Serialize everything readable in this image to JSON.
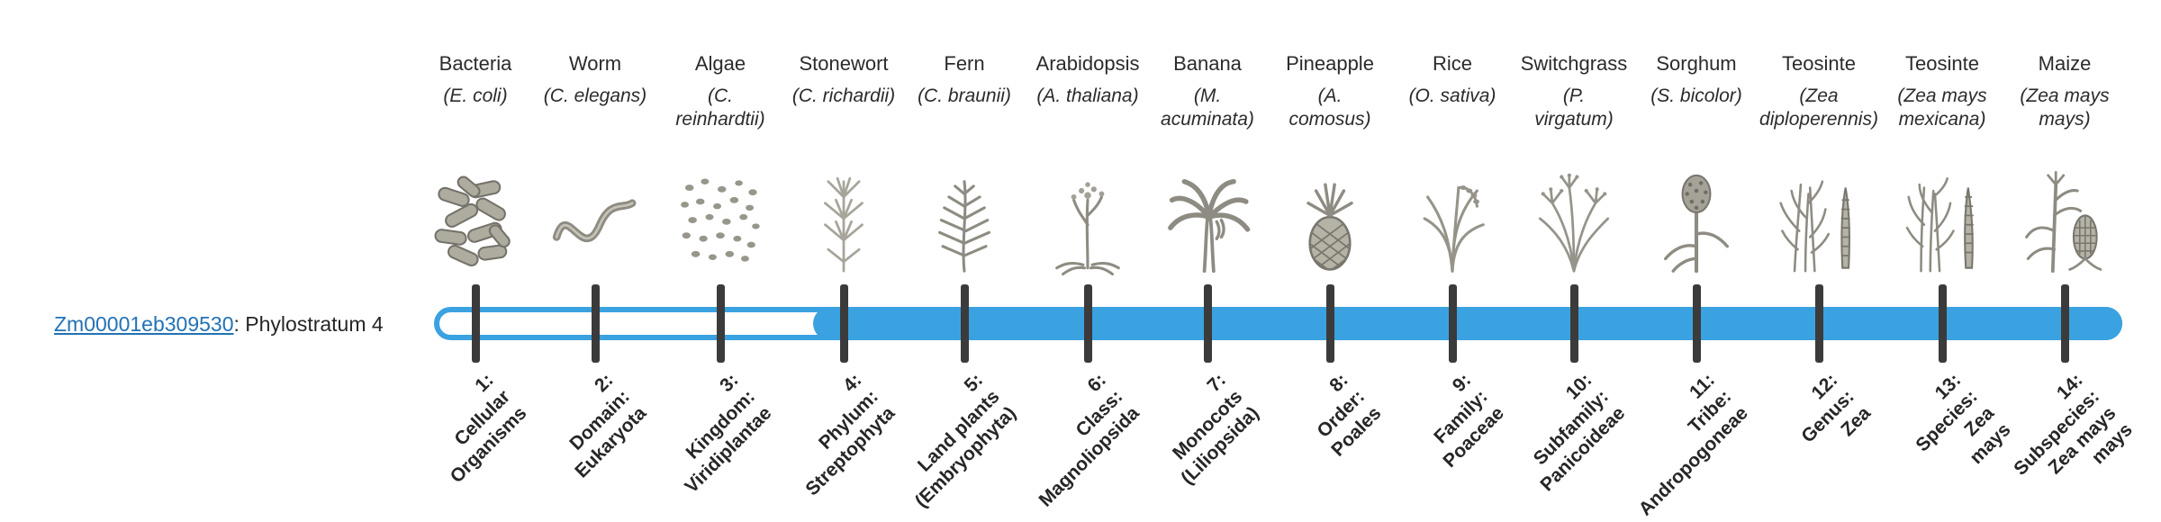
{
  "gene": {
    "id": "Zm00001eb309530",
    "assignment_suffix": ": Phylostratum 4",
    "phylostratum": 4
  },
  "colors": {
    "bar_blue": "#3aa2e0",
    "tick_dark": "#3b3b3b",
    "link_blue": "#2272b5",
    "text": "#262626",
    "illustration_gray": "#8e8c82"
  },
  "taxa": [
    {
      "common": "Bacteria",
      "scientific": "(E. coli)",
      "icon": "bacteria-icon"
    },
    {
      "common": "Worm",
      "scientific": "(C. elegans)",
      "icon": "worm-icon"
    },
    {
      "common": "Algae",
      "scientific": "(C.\nreinhardtii)",
      "icon": "algae-icon"
    },
    {
      "common": "Stonewort",
      "scientific": "(C. richardii)",
      "icon": "stonewort-icon"
    },
    {
      "common": "Fern",
      "scientific": "(C. braunii)",
      "icon": "fern-icon"
    },
    {
      "common": "Arabidopsis",
      "scientific": "(A. thaliana)",
      "icon": "arabidopsis-icon"
    },
    {
      "common": "Banana",
      "scientific": "(M.\nacuminata)",
      "icon": "banana-icon"
    },
    {
      "common": "Pineapple",
      "scientific": "(A.\ncomosus)",
      "icon": "pineapple-icon"
    },
    {
      "common": "Rice",
      "scientific": "(O. sativa)",
      "icon": "rice-icon"
    },
    {
      "common": "Switchgrass",
      "scientific": "(P.\nvirgatum)",
      "icon": "switchgrass-icon"
    },
    {
      "common": "Sorghum",
      "scientific": "(S. bicolor)",
      "icon": "sorghum-icon"
    },
    {
      "common": "Teosinte",
      "scientific": "(Zea\ndiploperennis)",
      "icon": "teosinte-diploperennis-icon"
    },
    {
      "common": "Teosinte",
      "scientific": "(Zea mays\nmexicana)",
      "icon": "teosinte-mexicana-icon"
    },
    {
      "common": "Maize",
      "scientific": "(Zea mays\nmays)",
      "icon": "maize-icon"
    }
  ],
  "phylostrata": [
    "1:\nCellular\nOrganisms",
    "2:\nDomain:\nEukaryota",
    "3:\nKingdom:\nViridiplantae",
    "4:\nPhylum:\nStreptophyta",
    "5:\nLand plants\n(Embryophyta)",
    "6:\nClass:\nMagnoliopsida",
    "7:\nMonocots\n(Liliopsida)",
    "8:\nOrder:\nPoales",
    "9:\nFamily:\nPoaceae",
    "10:\nSubfamily:\nPanicoideae",
    "11:\nTribe:\nAndropogoneae",
    "12:\nGenus:\nZea",
    "13:\nSpecies:\nZea\nmays",
    "14:\nSubspecies:\nZea mays\nmays"
  ],
  "chart_data": {
    "type": "bar",
    "title": "Zm00001eb309530: Phylostratum 4",
    "categories": [
      "1: Cellular Organisms",
      "2: Domain: Eukaryota",
      "3: Kingdom: Viridiplantae",
      "4: Phylum: Streptophyta",
      "5: Land plants (Embryophyta)",
      "6: Class: Magnoliopsida",
      "7: Monocots (Liliopsida)",
      "8: Order: Poales",
      "9: Family: Poaceae",
      "10: Subfamily: Panicoideae",
      "11: Tribe: Andropogoneae",
      "12: Genus: Zea",
      "13: Species: Zea mays",
      "14: Subspecies: Zea mays mays"
    ],
    "representative_taxa": [
      "Bacteria (E. coli)",
      "Worm (C. elegans)",
      "Algae (C. reinhardtii)",
      "Stonewort (C. richardii)",
      "Fern (C. braunii)",
      "Arabidopsis (A. thaliana)",
      "Banana (M. acuminata)",
      "Pineapple (A. comosus)",
      "Rice (O. sativa)",
      "Switchgrass (P. virgatum)",
      "Sorghum (S. bicolor)",
      "Teosinte (Zea diploperennis)",
      "Teosinte (Zea mays mexicana)",
      "Maize (Zea mays mays)"
    ],
    "gene_phylostratum": 4,
    "highlighted_range": [
      4,
      14
    ],
    "legend_position": "none"
  }
}
